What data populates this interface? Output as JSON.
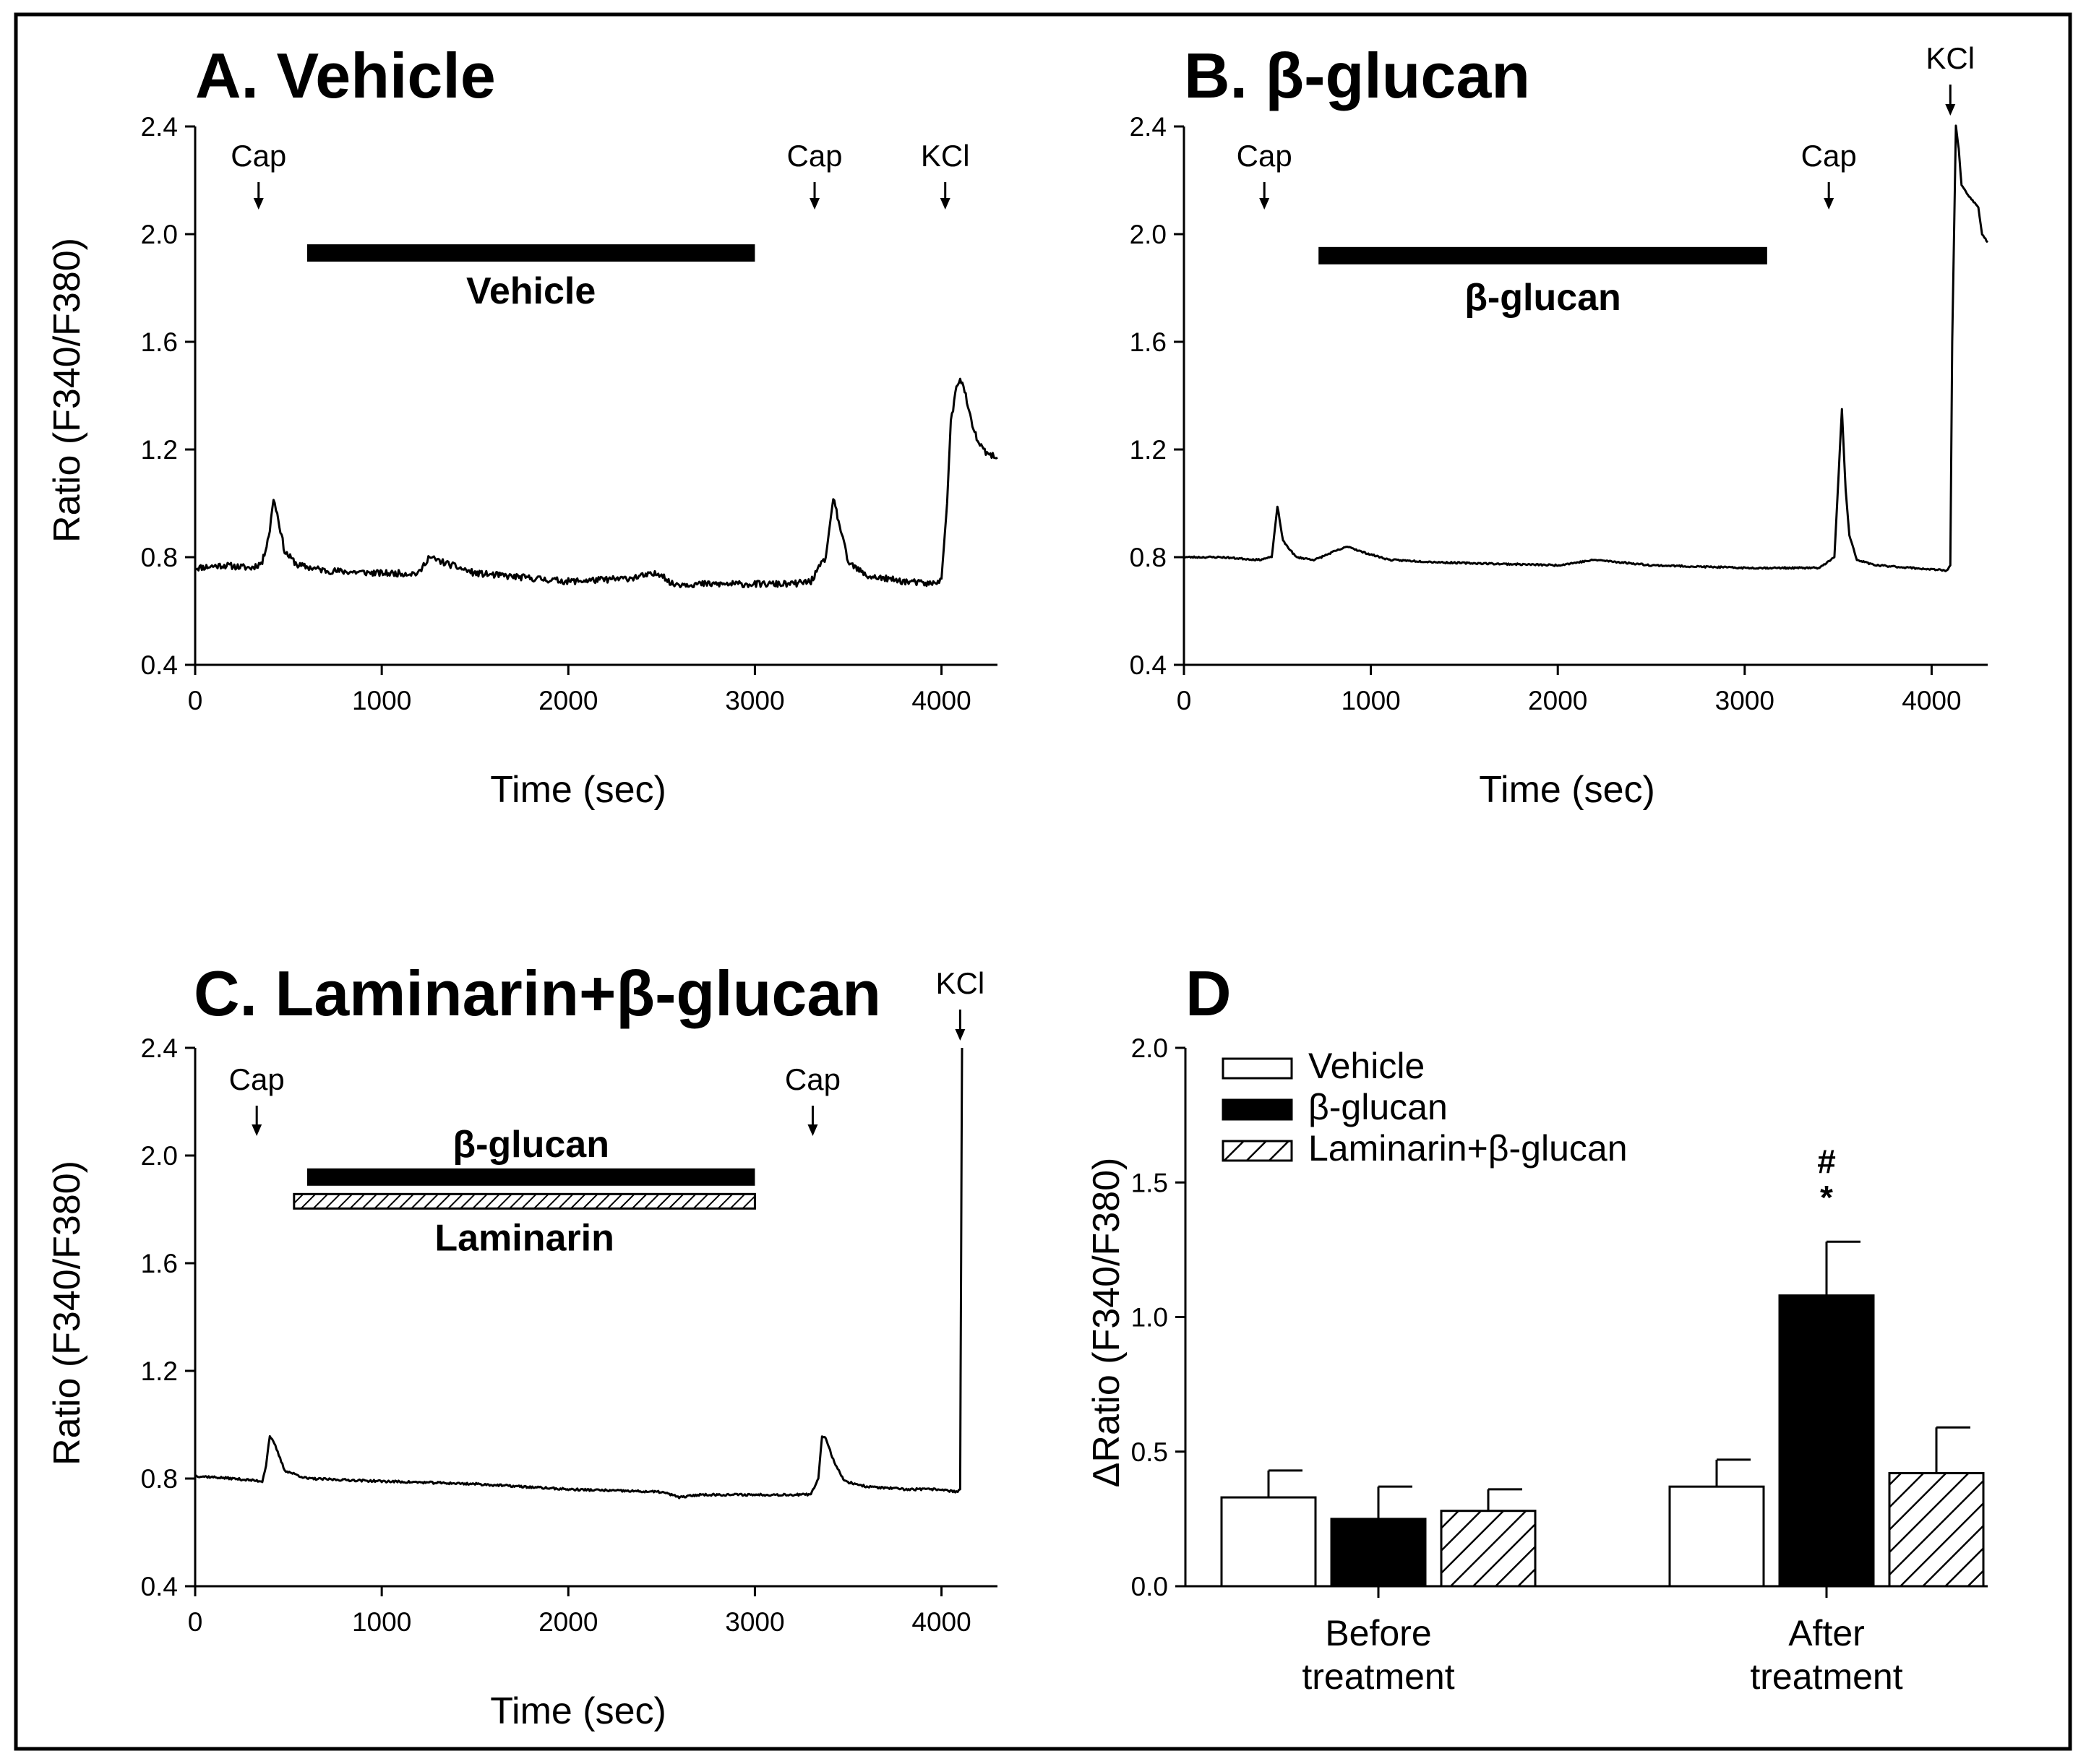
{
  "chart_data": [
    {
      "panel": "A",
      "type": "line",
      "title": "A. Vehicle",
      "xlabel": "Time (sec)",
      "ylabel": "Ratio (F340/F380)",
      "xlim": [
        0,
        4300
      ],
      "ylim": [
        0.4,
        2.4
      ],
      "xticks": [
        0,
        1000,
        2000,
        3000,
        4000
      ],
      "xtick_labels": [
        "0",
        "1000",
        "2000",
        "3000",
        "4000"
      ],
      "yticks": [
        0.4,
        0.8,
        1.2,
        1.6,
        2.0,
        2.4
      ],
      "ytick_labels": [
        "0.4",
        "0.8",
        "1.2",
        "1.6",
        "2.0",
        "2.4"
      ],
      "arrows": [
        {
          "label": "Cap",
          "x": 340
        },
        {
          "label": "Cap",
          "x": 3320
        },
        {
          "label": "KCl",
          "x": 4020
        }
      ],
      "treatment_bars": [
        {
          "label": "Vehicle",
          "x_start": 600,
          "x_end": 3000,
          "y": 1.93,
          "style": "solid"
        }
      ],
      "series": [
        {
          "name": "trace",
          "noise": 0.012,
          "x": [
            0,
            150,
            300,
            360,
            400,
            420,
            440,
            480,
            550,
            700,
            1000,
            1200,
            1250,
            1500,
            2000,
            2300,
            2500,
            2550,
            2600,
            3000,
            3200,
            3300,
            3380,
            3420,
            3460,
            3500,
            3600,
            3800,
            3950,
            4000,
            4030,
            4050,
            4080,
            4100,
            4130,
            4160,
            4200,
            4250,
            4300
          ],
          "y": [
            0.76,
            0.77,
            0.76,
            0.78,
            0.9,
            1.02,
            0.96,
            0.82,
            0.77,
            0.75,
            0.74,
            0.74,
            0.8,
            0.74,
            0.71,
            0.72,
            0.74,
            0.7,
            0.7,
            0.7,
            0.7,
            0.71,
            0.8,
            1.02,
            0.9,
            0.78,
            0.73,
            0.71,
            0.7,
            0.72,
            1.0,
            1.3,
            1.43,
            1.47,
            1.4,
            1.3,
            1.22,
            1.18,
            1.17
          ]
        }
      ]
    },
    {
      "panel": "B",
      "type": "line",
      "title": "B. β-glucan",
      "xlabel": "Time (sec)",
      "ylabel": "",
      "xlim": [
        0,
        4300
      ],
      "ylim": [
        0.4,
        2.4
      ],
      "xticks": [
        0,
        1000,
        2000,
        3000,
        4000
      ],
      "xtick_labels": [
        "0",
        "1000",
        "2000",
        "3000",
        "4000"
      ],
      "yticks": [
        0.4,
        0.8,
        1.2,
        1.6,
        2.0,
        2.4
      ],
      "ytick_labels": [
        "0.4",
        "0.8",
        "1.2",
        "1.6",
        "2.0",
        "2.4"
      ],
      "arrows": [
        {
          "label": "Cap",
          "x": 430
        },
        {
          "label": "Cap",
          "x": 3450
        },
        {
          "label": "KCl",
          "x": 4100
        }
      ],
      "treatment_bars": [
        {
          "label": "β-glucan",
          "x_start": 720,
          "x_end": 3120,
          "y": 1.92,
          "style": "solid"
        }
      ],
      "series": [
        {
          "name": "trace",
          "noise": 0.003,
          "x": [
            0,
            200,
            400,
            470,
            500,
            530,
            600,
            700,
            800,
            880,
            950,
            1100,
            1400,
            2000,
            2200,
            2500,
            3000,
            3400,
            3480,
            3520,
            3540,
            3560,
            3600,
            3700,
            3900,
            4080,
            4100,
            4110,
            4130,
            4145,
            4160,
            4200,
            4250,
            4270,
            4300
          ],
          "y": [
            0.8,
            0.8,
            0.79,
            0.8,
            0.99,
            0.86,
            0.8,
            0.79,
            0.82,
            0.84,
            0.82,
            0.79,
            0.78,
            0.77,
            0.79,
            0.77,
            0.76,
            0.76,
            0.8,
            1.35,
            1.05,
            0.88,
            0.79,
            0.77,
            0.76,
            0.75,
            0.77,
            1.6,
            2.4,
            2.32,
            2.18,
            2.14,
            2.1,
            2.0,
            1.97
          ]
        }
      ]
    },
    {
      "panel": "C",
      "type": "line",
      "title": "C. Laminarin+β-glucan",
      "xlabel": "Time (sec)",
      "ylabel": "Ratio (F340/F380)",
      "xlim": [
        0,
        4300
      ],
      "ylim": [
        0.4,
        2.4
      ],
      "xticks": [
        0,
        1000,
        2000,
        3000,
        4000
      ],
      "xtick_labels": [
        "0",
        "1000",
        "2000",
        "3000",
        "4000"
      ],
      "yticks": [
        0.4,
        0.8,
        1.2,
        1.6,
        2.0,
        2.4
      ],
      "ytick_labels": [
        "0.4",
        "0.8",
        "1.2",
        "1.6",
        "2.0",
        "2.4"
      ],
      "arrows": [
        {
          "label": "Cap",
          "x": 330
        },
        {
          "label": "Cap",
          "x": 3310
        },
        {
          "label": "KCl",
          "x": 4100
        }
      ],
      "treatment_bars": [
        {
          "label": "β-glucan",
          "x_start": 600,
          "x_end": 3000,
          "y": 1.92,
          "style": "solid"
        },
        {
          "label": "Laminarin",
          "x_start": 530,
          "x_end": 3000,
          "y": 1.83,
          "style": "hatched"
        }
      ],
      "series": [
        {
          "name": "trace",
          "noise": 0.004,
          "x": [
            0,
            200,
            360,
            380,
            400,
            430,
            480,
            600,
            1000,
            1500,
            2000,
            2500,
            2600,
            2700,
            3000,
            3300,
            3340,
            3360,
            3380,
            3420,
            3480,
            3600,
            3800,
            4000,
            4080,
            4100,
            4105,
            4110
          ],
          "y": [
            0.81,
            0.8,
            0.79,
            0.85,
            0.96,
            0.92,
            0.83,
            0.8,
            0.79,
            0.78,
            0.76,
            0.75,
            0.73,
            0.74,
            0.74,
            0.74,
            0.8,
            0.96,
            0.95,
            0.87,
            0.79,
            0.77,
            0.76,
            0.76,
            0.75,
            0.76,
            1.6,
            2.4
          ]
        }
      ]
    },
    {
      "panel": "D",
      "type": "bar",
      "title": "D",
      "xlabel": "",
      "ylabel": "ΔRatio (F340/F380)",
      "ylim": [
        0,
        2.0
      ],
      "yticks": [
        0,
        0.5,
        1.0,
        1.5,
        2.0
      ],
      "ytick_labels": [
        "0.0",
        "0.5",
        "1.0",
        "1.5",
        "2.0"
      ],
      "categories": [
        {
          "line1": "Before",
          "line2": "treatment"
        },
        {
          "line1": "After",
          "line2": "treatment"
        }
      ],
      "series": [
        {
          "name": "Vehicle",
          "style": "open",
          "values": [
            0.33,
            0.37
          ],
          "errors": [
            0.1,
            0.1
          ]
        },
        {
          "name": "β-glucan",
          "style": "filled",
          "values": [
            0.25,
            1.08
          ],
          "errors": [
            0.12,
            0.2
          ]
        },
        {
          "name": "Laminarin+β-glucan",
          "style": "hatched",
          "values": [
            0.28,
            0.42
          ],
          "errors": [
            0.08,
            0.17
          ]
        }
      ],
      "annotations": [
        {
          "text": "#",
          "category": 1,
          "series": 1
        },
        {
          "text": "*",
          "category": 1,
          "series": 1
        }
      ],
      "legend_position": "top-left"
    }
  ]
}
